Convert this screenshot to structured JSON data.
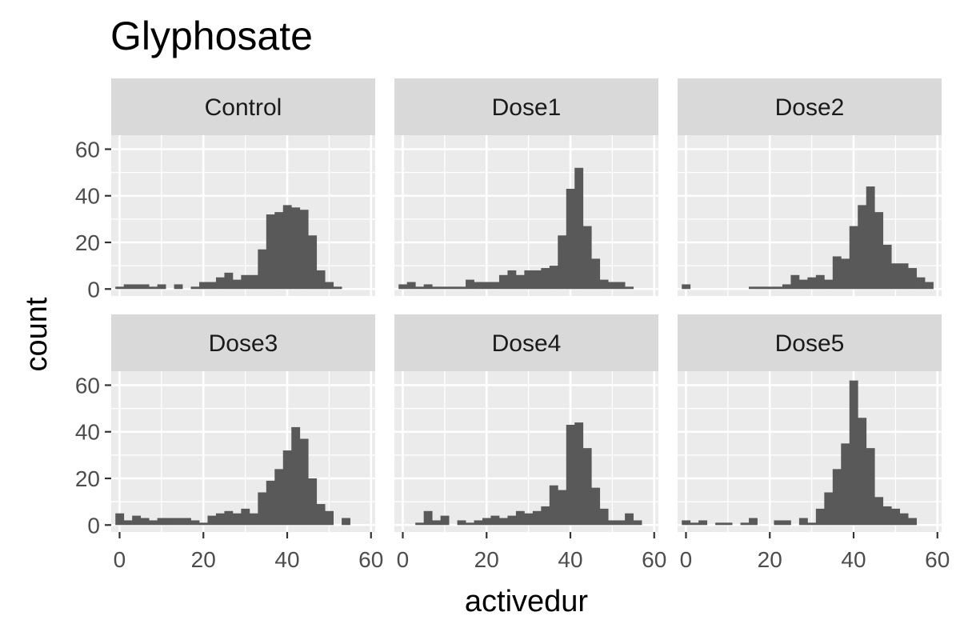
{
  "chart_data": {
    "type": "bar",
    "title": "Glyphosate",
    "xlabel": "activedur",
    "ylabel": "count",
    "xlim": [
      -2,
      61
    ],
    "ylim": [
      -3,
      66
    ],
    "x_ticks": [
      0,
      20,
      40,
      60
    ],
    "y_ticks": [
      0,
      20,
      40,
      60
    ],
    "grid": true,
    "bar_color": "#595959",
    "panel_background": "#ebebeb",
    "strip_background": "#d9d9d9",
    "bin_start": -1,
    "bin_width": 2,
    "panels": [
      {
        "name": "Control",
        "values": [
          1,
          2,
          2,
          2,
          1,
          2,
          0,
          2,
          0,
          1,
          3,
          3,
          5,
          7,
          4,
          6,
          6,
          17,
          32,
          33,
          36,
          35,
          34,
          23,
          8,
          3,
          1,
          0,
          0,
          0
        ]
      },
      {
        "name": "Dose1",
        "values": [
          2,
          3,
          1,
          2,
          1,
          1,
          1,
          1,
          4,
          3,
          3,
          3,
          6,
          8,
          6,
          8,
          8,
          9,
          10,
          23,
          43,
          52,
          27,
          13,
          4,
          3,
          3,
          1,
          0,
          0
        ]
      },
      {
        "name": "Dose2",
        "values": [
          2,
          0,
          0,
          0,
          0,
          0,
          0,
          0,
          1,
          1,
          1,
          1,
          2,
          6,
          4,
          5,
          6,
          4,
          14,
          13,
          27,
          36,
          44,
          33,
          19,
          11,
          11,
          9,
          5,
          3
        ]
      },
      {
        "name": "Dose3",
        "values": [
          5,
          2,
          4,
          3,
          2,
          3,
          3,
          3,
          3,
          2,
          1,
          4,
          5,
          6,
          5,
          7,
          5,
          14,
          19,
          24,
          32,
          42,
          37,
          20,
          9,
          6,
          0,
          3,
          0,
          0
        ]
      },
      {
        "name": "Dose4",
        "values": [
          0,
          0,
          1,
          6,
          2,
          4,
          0,
          2,
          1,
          2,
          3,
          4,
          3,
          4,
          6,
          5,
          6,
          8,
          17,
          15,
          43,
          44,
          33,
          16,
          7,
          2,
          2,
          5,
          2,
          0
        ]
      },
      {
        "name": "Dose5",
        "values": [
          2,
          1,
          2,
          0,
          1,
          1,
          0,
          1,
          3,
          0,
          0,
          2,
          2,
          0,
          3,
          1,
          7,
          14,
          24,
          35,
          62,
          46,
          33,
          12,
          8,
          7,
          5,
          3,
          0,
          0
        ]
      }
    ]
  }
}
